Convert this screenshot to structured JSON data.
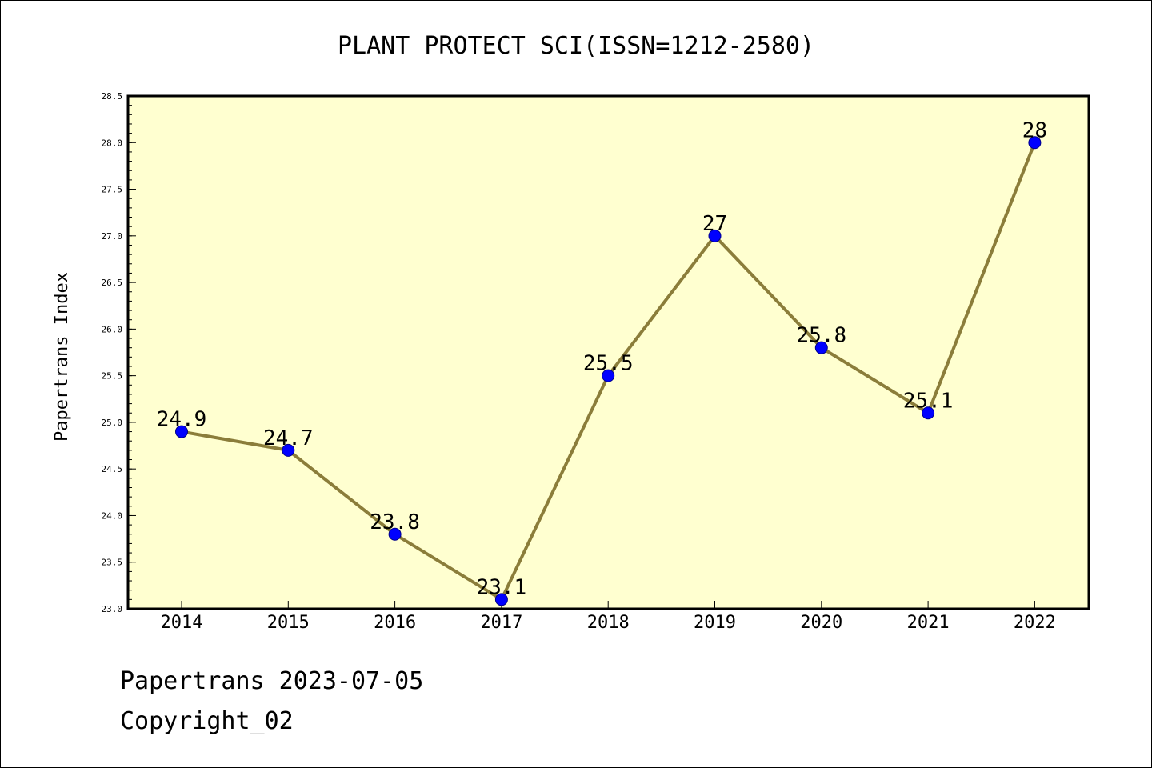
{
  "footer": {
    "line1": "Papertrans 2023-07-05",
    "line2": "Copyright_02"
  },
  "chart_data": {
    "type": "line",
    "title": "PLANT PROTECT SCI(ISSN=1212-2580)",
    "xlabel": "",
    "ylabel": "Papertrans Index",
    "x": [
      "2014",
      "2015",
      "2016",
      "2017",
      "2018",
      "2019",
      "2020",
      "2021",
      "2022"
    ],
    "values": [
      24.9,
      24.7,
      23.8,
      23.1,
      25.5,
      27,
      25.8,
      25.1,
      28
    ],
    "data_labels": [
      "24.9",
      "24.7",
      "23.8",
      "23.1",
      "25.5",
      "27",
      "25.8",
      "25.1",
      "28"
    ],
    "ylim": [
      23.0,
      28.5
    ],
    "yticks": [
      "23.0",
      "23.5",
      "24.0",
      "24.5",
      "25.0",
      "25.5",
      "26.0",
      "26.5",
      "27.0",
      "27.5",
      "28.0",
      "28.5"
    ],
    "grid": false,
    "colors": {
      "plot_background": "#ffffd0",
      "line": "#8b7d3a",
      "marker": "#0000ff"
    }
  }
}
